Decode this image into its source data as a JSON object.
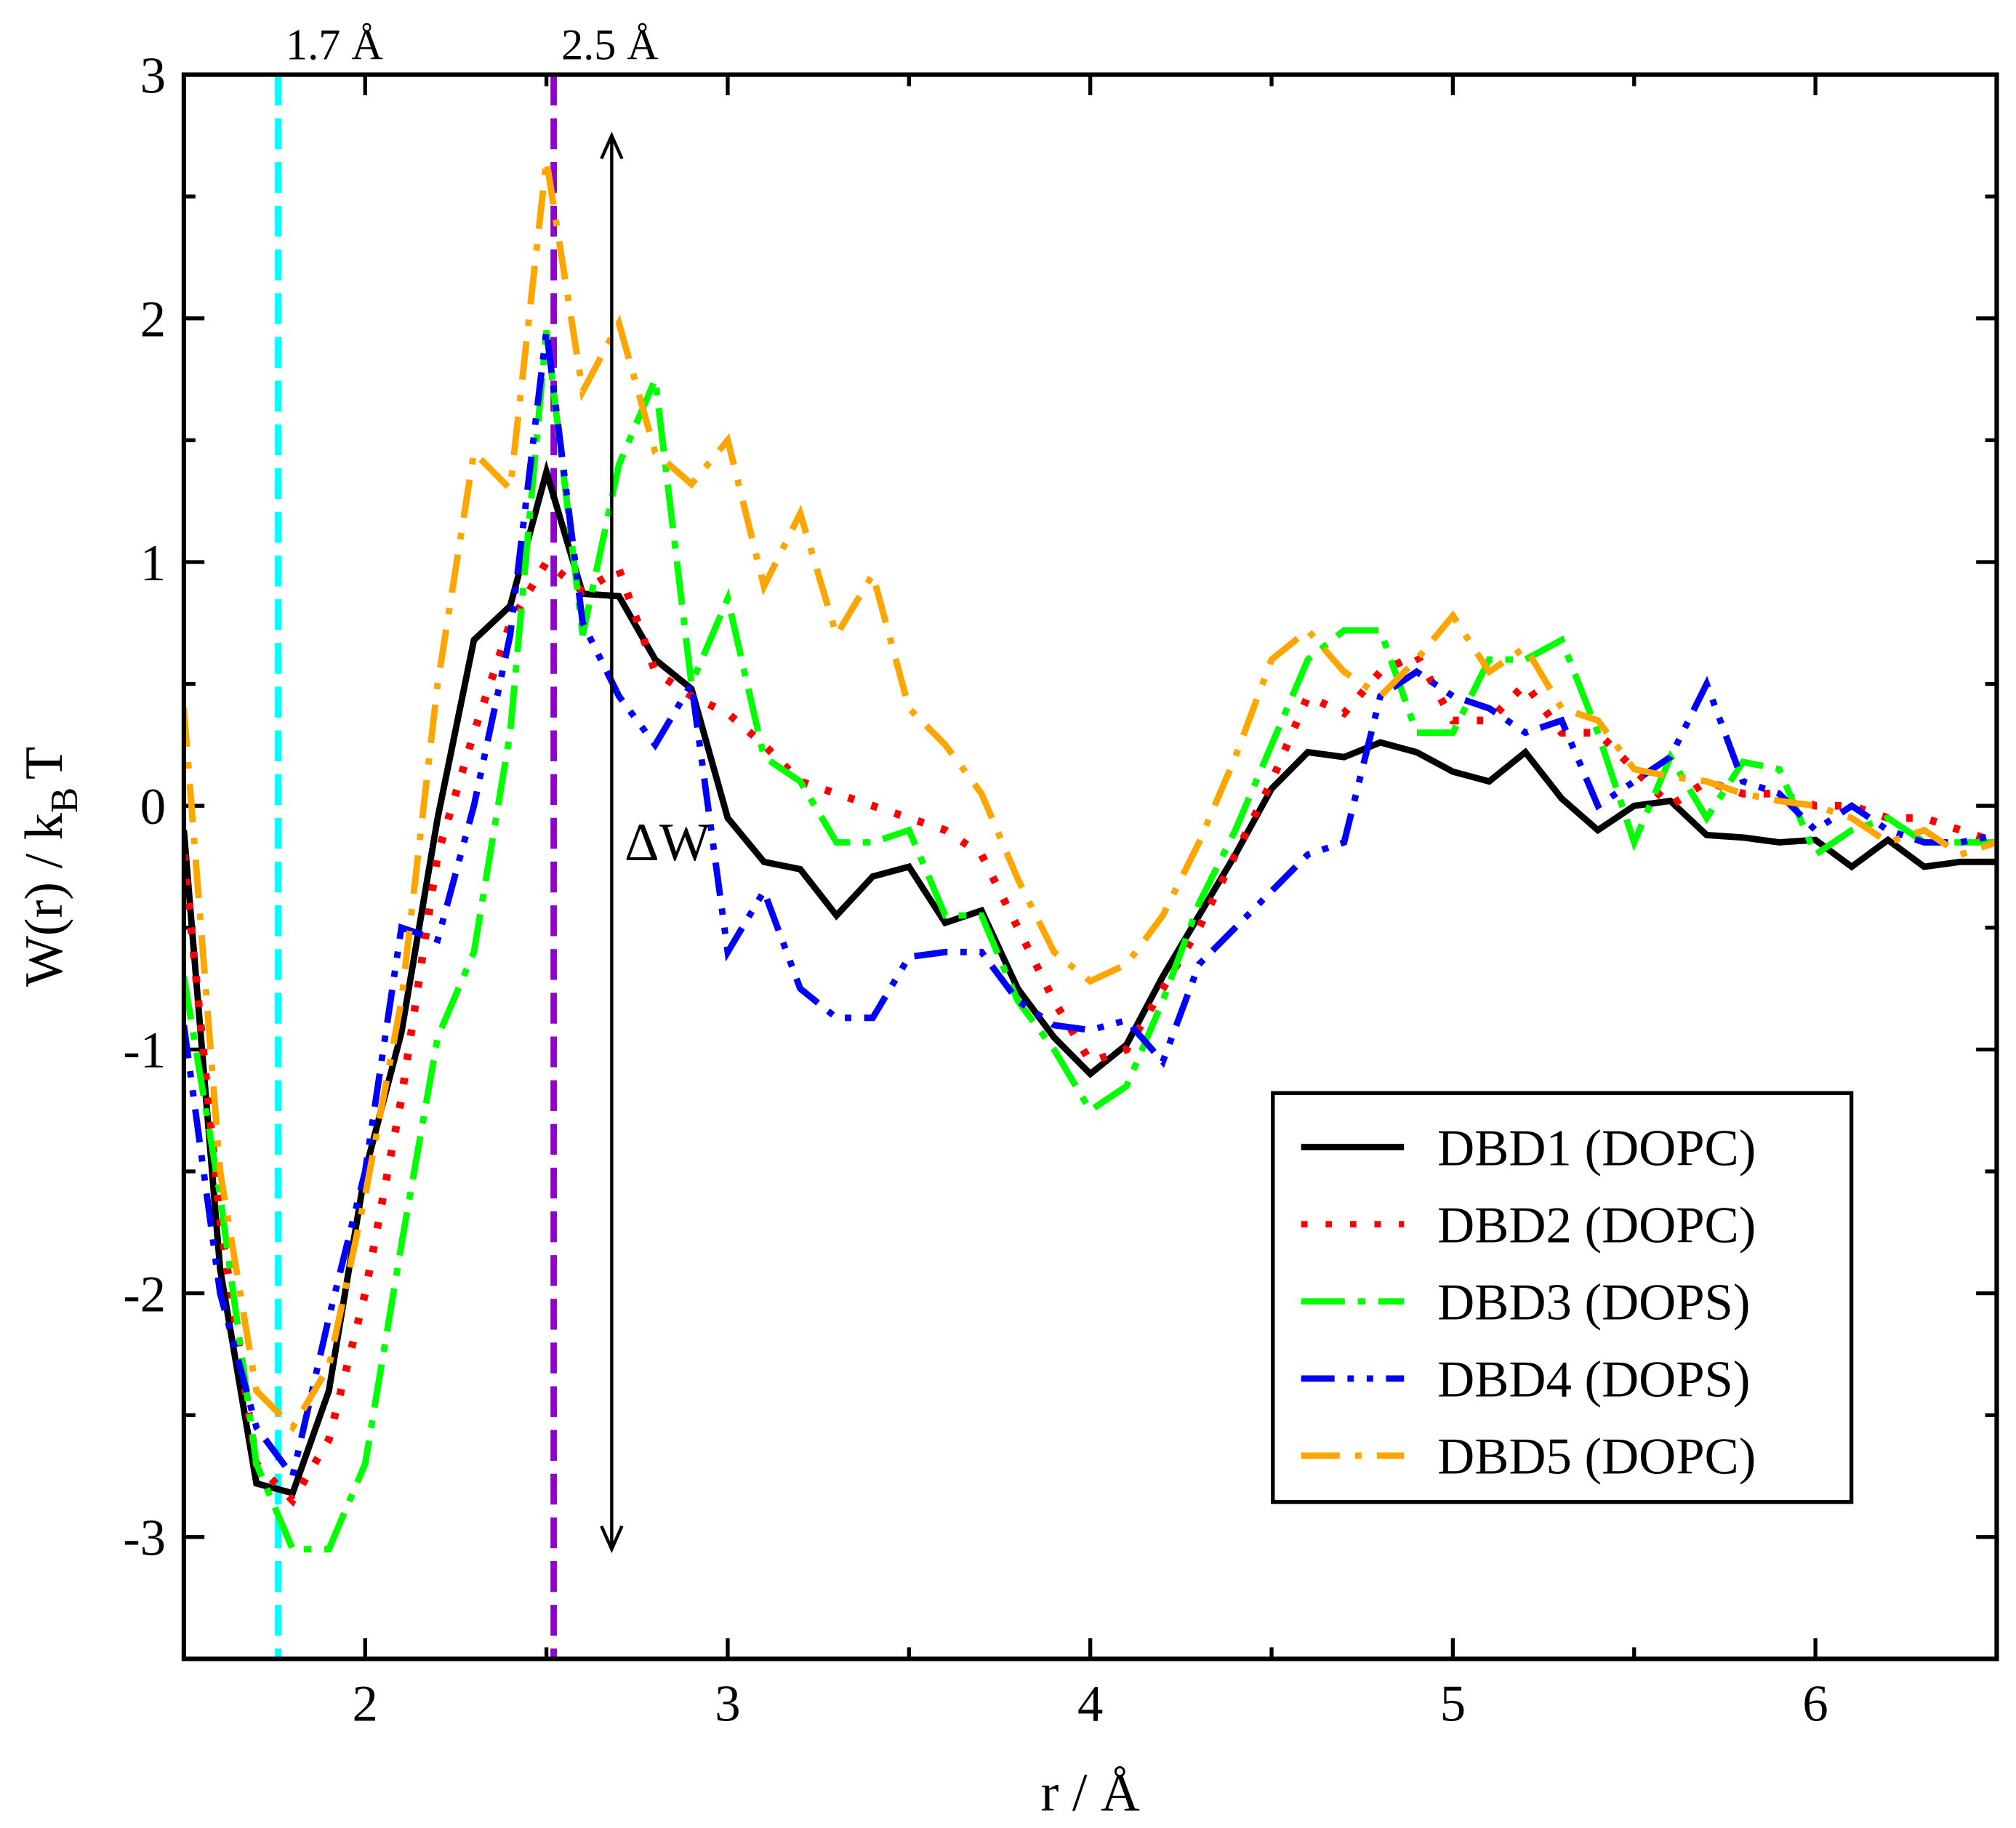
{
  "chart_data": {
    "type": "line",
    "xlabel": "r / Å",
    "ylabel": [
      "W(r) / k",
      "B",
      "T"
    ],
    "x": [
      1.5,
      1.6,
      1.7,
      1.8,
      1.9,
      2.0,
      2.1,
      2.2,
      2.3,
      2.4,
      2.5,
      2.6,
      2.7,
      2.8,
      2.9,
      3.0,
      3.1,
      3.2,
      3.3,
      3.4,
      3.5,
      3.6,
      3.7,
      3.8,
      3.9,
      4.0,
      4.1,
      4.2,
      4.3,
      4.4,
      4.5,
      4.6,
      4.7,
      4.8,
      4.9,
      5.0,
      5.1,
      5.2,
      5.3,
      5.4,
      5.5,
      5.6,
      5.7,
      5.8,
      5.9,
      6.0,
      6.1,
      6.2,
      6.3,
      6.4,
      6.5
    ],
    "series": [
      {
        "name": "DBD1 (DOPC)",
        "color": "#000000",
        "dash": "solid",
        "values": [
          -0.1,
          -1.9,
          -2.78,
          -2.82,
          -2.4,
          -1.5,
          -0.93,
          -0.05,
          0.68,
          0.82,
          1.37,
          0.87,
          0.86,
          0.6,
          0.48,
          -0.05,
          -0.23,
          -0.26,
          -0.45,
          -0.29,
          -0.25,
          -0.48,
          -0.43,
          -0.75,
          -0.95,
          -1.1,
          -0.98,
          -0.7,
          -0.45,
          -0.2,
          0.07,
          0.22,
          0.2,
          0.26,
          0.22,
          0.14,
          0.1,
          0.22,
          0.03,
          -0.1,
          0.0,
          0.02,
          -0.12,
          -0.13,
          -0.15,
          -0.14,
          -0.25,
          -0.14,
          -0.25,
          -0.23,
          -0.23
        ]
      },
      {
        "name": "DBD2 (DOPC)",
        "color": "#ff0000",
        "dash": "dotted",
        "values": [
          -0.2,
          -1.7,
          -2.7,
          -2.85,
          -2.6,
          -2.0,
          -1.2,
          -0.2,
          0.3,
          0.75,
          1.0,
          0.88,
          0.97,
          0.55,
          0.45,
          0.38,
          0.25,
          0.1,
          0.05,
          0.0,
          -0.05,
          -0.1,
          -0.2,
          -0.5,
          -0.8,
          -1.05,
          -1.0,
          -0.75,
          -0.5,
          -0.2,
          0.1,
          0.45,
          0.38,
          0.55,
          0.62,
          0.35,
          0.35,
          0.5,
          0.3,
          0.3,
          0.15,
          0.0,
          0.1,
          0.05,
          0.05,
          0.0,
          0.0,
          -0.05,
          -0.05,
          -0.1,
          -0.15
        ]
      },
      {
        "name": "DBD3 (DOPS)",
        "color": "#00ff00",
        "dash": "long-dash",
        "values": [
          -0.7,
          -1.6,
          -2.7,
          -3.05,
          -3.05,
          -2.7,
          -1.8,
          -0.95,
          -0.6,
          0.3,
          1.95,
          0.7,
          1.4,
          1.75,
          0.5,
          0.85,
          0.2,
          0.1,
          -0.15,
          -0.15,
          -0.1,
          -0.45,
          -0.45,
          -0.8,
          -1.0,
          -1.25,
          -1.15,
          -0.8,
          -0.4,
          -0.1,
          0.25,
          0.6,
          0.72,
          0.72,
          0.3,
          0.3,
          0.6,
          0.6,
          0.68,
          0.3,
          -0.15,
          0.2,
          -0.05,
          0.18,
          0.15,
          -0.2,
          -0.1,
          -0.05,
          -0.15,
          -0.15,
          -0.15
        ]
      },
      {
        "name": "DBD4 (DOPS)",
        "color": "#0000ff",
        "dash": "dash-dot-dot",
        "values": [
          -0.9,
          -2.0,
          -2.55,
          -2.75,
          -2.1,
          -1.5,
          -0.5,
          -0.55,
          0.0,
          0.7,
          1.95,
          0.75,
          0.45,
          0.25,
          0.5,
          -0.6,
          -0.35,
          -0.75,
          -0.87,
          -0.87,
          -0.62,
          -0.6,
          -0.6,
          -0.8,
          -0.9,
          -0.92,
          -0.88,
          -1.05,
          -0.65,
          -0.5,
          -0.35,
          -0.2,
          -0.15,
          0.45,
          0.55,
          0.45,
          0.4,
          0.3,
          0.35,
          0.0,
          0.1,
          0.2,
          0.5,
          0.1,
          0.05,
          -0.1,
          0.0,
          -0.1,
          -0.15,
          -0.15,
          -0.12
        ]
      },
      {
        "name": "DBD5 (DOPC)",
        "color": "#ffa500",
        "dash": "dash-dot",
        "values": [
          0.4,
          -1.5,
          -2.4,
          -2.55,
          -2.3,
          -1.6,
          -0.8,
          0.5,
          1.45,
          1.3,
          2.65,
          1.7,
          1.98,
          1.45,
          1.32,
          1.5,
          0.9,
          1.2,
          0.7,
          0.95,
          0.4,
          0.25,
          0.05,
          -0.3,
          -0.6,
          -0.72,
          -0.65,
          -0.45,
          -0.15,
          0.2,
          0.6,
          0.72,
          0.55,
          0.45,
          0.6,
          0.78,
          0.55,
          0.65,
          0.4,
          0.35,
          0.15,
          0.12,
          0.1,
          0.05,
          0.02,
          0.0,
          -0.05,
          -0.15,
          -0.1,
          -0.2,
          -0.15
        ]
      }
    ],
    "vlines": [
      {
        "x": 1.76,
        "label": "1.7 Å",
        "color": "#00ffff"
      },
      {
        "x": 2.52,
        "label": "2.5 Å",
        "color": "#9400d3"
      }
    ],
    "annotation": {
      "text": "ΔW",
      "x": 2.68,
      "y_from": 2.75,
      "y_to": -3.05
    },
    "xlim": [
      1.5,
      6.5
    ],
    "ylim": [
      -3.5,
      3
    ],
    "xticks": [
      2,
      3,
      4,
      5,
      6
    ],
    "yticks": [
      -3,
      -2,
      -1,
      0,
      1,
      2,
      3
    ],
    "legend": "lower right"
  }
}
